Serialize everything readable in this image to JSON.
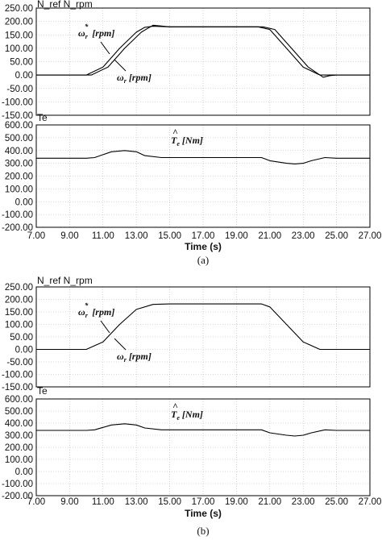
{
  "chart_data": [
    {
      "type": "line",
      "panel": "(a) speed",
      "title": "N_ref  N_rpm",
      "ylim": [
        -150,
        250
      ],
      "ytick_labels": [
        "250.00",
        "200.00",
        "150.00",
        "100.00",
        "50.00",
        "0.00",
        "-50.00",
        "-100.00",
        "-150.00"
      ],
      "xlim": [
        7,
        27
      ],
      "xtick_labels": [
        "7.00",
        "9.00",
        "11.00",
        "13.00",
        "15.00",
        "17.00",
        "19.00",
        "21.00",
        "23.00",
        "25.00",
        "27.00"
      ],
      "grid": true,
      "annotations": [
        "ω_r* [rpm]",
        "ω_r [rpm]"
      ],
      "series": [
        {
          "x": [
            7,
            9,
            10,
            11,
            12,
            13,
            13.5,
            14,
            15,
            17,
            19,
            20.3,
            21,
            22,
            23,
            24,
            24.5,
            25,
            27
          ],
          "y": [
            0,
            0,
            0,
            30,
            100,
            160,
            178,
            182,
            180,
            180,
            180,
            180,
            170,
            100,
            30,
            0,
            0,
            0,
            0
          ]
        },
        {
          "x": [
            7,
            9,
            10.3,
            11.3,
            12.3,
            13.3,
            14.0,
            14.5,
            15,
            17,
            19,
            20.6,
            21.3,
            22.3,
            23.3,
            24.2,
            24.6,
            25,
            27
          ],
          "y": [
            0,
            0,
            0,
            30,
            100,
            160,
            186,
            183,
            180,
            180,
            180,
            180,
            170,
            100,
            30,
            -8,
            -2,
            0,
            0
          ]
        }
      ]
    },
    {
      "type": "line",
      "panel": "(a) torque",
      "title": "Te",
      "ylim": [
        -200,
        600
      ],
      "ytick_labels": [
        "600.00",
        "500.00",
        "400.00",
        "300.00",
        "200.00",
        "100.00",
        "0.00",
        "-100.00",
        "-200.00"
      ],
      "xlim": [
        7,
        27
      ],
      "xtick_labels": [
        "7.00",
        "9.00",
        "11.00",
        "13.00",
        "15.00",
        "17.00",
        "19.00",
        "21.00",
        "23.00",
        "25.00",
        "27.00"
      ],
      "xlabel": "Time (s)",
      "grid": true,
      "annotations": [
        "T_e [Nm]"
      ],
      "series": [
        {
          "x": [
            7,
            10,
            10.5,
            11.5,
            12.3,
            13,
            13.5,
            14.5,
            20.5,
            21,
            22,
            22.5,
            23,
            23.5,
            24.3,
            25,
            27
          ],
          "y": [
            340,
            340,
            345,
            390,
            400,
            390,
            360,
            345,
            345,
            320,
            300,
            295,
            300,
            320,
            345,
            340,
            340
          ]
        }
      ]
    },
    {
      "type": "line",
      "panel": "(b) speed",
      "title": "N_ref  N_rpm",
      "ylim": [
        -150,
        250
      ],
      "ytick_labels": [
        "250.00",
        "200.00",
        "150.00",
        "100.00",
        "50.00",
        "0.00",
        "-50.00",
        "-100.00",
        "-150.00"
      ],
      "xlim": [
        7,
        27
      ],
      "xtick_labels": [
        "7.00",
        "9.00",
        "11.00",
        "13.00",
        "15.00",
        "17.00",
        "19.00",
        "21.00",
        "23.00",
        "25.00",
        "27.00"
      ],
      "grid": true,
      "annotations": [
        "ω_r* [rpm]",
        "ω_r [rpm]"
      ],
      "series": [
        {
          "x": [
            7,
            9,
            10,
            11,
            12,
            13,
            14,
            15,
            17,
            19,
            20.5,
            21,
            22,
            23,
            24,
            25,
            27
          ],
          "y": [
            0,
            0,
            0,
            30,
            100,
            160,
            180,
            182,
            182,
            182,
            182,
            170,
            100,
            30,
            0,
            0,
            0
          ]
        }
      ]
    },
    {
      "type": "line",
      "panel": "(b) torque",
      "title": "Te",
      "ylim": [
        -200,
        600
      ],
      "ytick_labels": [
        "600.00",
        "500.00",
        "400.00",
        "300.00",
        "200.00",
        "100.00",
        "0.00",
        "-100.00",
        "-200.00"
      ],
      "xlim": [
        7,
        27
      ],
      "xtick_labels": [
        "7.00",
        "9.00",
        "11.00",
        "13.00",
        "15.00",
        "17.00",
        "19.00",
        "21.00",
        "23.00",
        "25.00",
        "27.00"
      ],
      "xlabel": "Time (s)",
      "grid": true,
      "annotations": [
        "T_e [Nm]"
      ],
      "series": [
        {
          "x": [
            7,
            10,
            10.5,
            11.5,
            12.3,
            13,
            13.5,
            14.5,
            20.5,
            21,
            22,
            22.5,
            23,
            23.5,
            24.3,
            25,
            27
          ],
          "y": [
            340,
            340,
            345,
            385,
            395,
            385,
            360,
            345,
            345,
            320,
            300,
            293,
            300,
            320,
            345,
            340,
            340
          ]
        }
      ]
    }
  ],
  "captions": [
    "(a)",
    "(b)"
  ]
}
